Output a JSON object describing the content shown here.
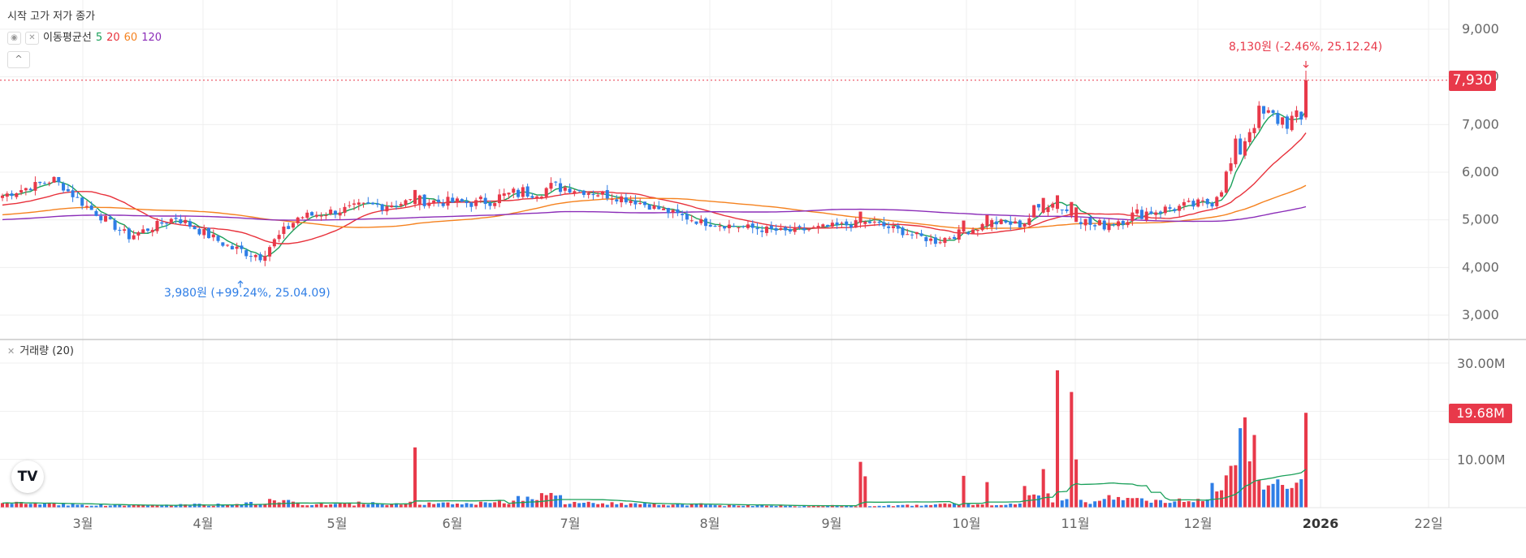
{
  "header": {
    "ohlc_label": "시작 고가 저가 종가"
  },
  "ma_legend": {
    "label": "이동평균선",
    "periods": [
      "5",
      "20",
      "60",
      "120"
    ],
    "colors": [
      "#1aa05a",
      "#e8313b",
      "#f5821f",
      "#8b2db8"
    ]
  },
  "volume_legend": {
    "label": "거래량 (20)"
  },
  "colors": {
    "up": "#e8394a",
    "down": "#2f7ee6",
    "grid": "#efefef",
    "last_price_bg": "#e8394a"
  },
  "annotations": {
    "high": "8,130원 (-2.46%, 25.12.24)",
    "low": "3,980원 (+99.24%, 25.04.09)"
  },
  "last_price": "7,930",
  "last_volume": "19.68M",
  "chart_data": {
    "type": "candlestick",
    "x_axis_labels": [
      "3월",
      "4월",
      "5월",
      "6월",
      "7월",
      "8월",
      "9월",
      "10월",
      "11월",
      "12월",
      "2026",
      "22일"
    ],
    "price_axis": {
      "ticks": [
        "9,000",
        "8,000",
        "7,000",
        "6,000",
        "5,000",
        "4,000",
        "3,000"
      ],
      "ylim": [
        2600,
        9300
      ]
    },
    "volume_axis": {
      "ticks": [
        "30.00M",
        "10.00M"
      ],
      "ylim": [
        0,
        36000000
      ]
    },
    "segments": [
      {
        "bars": 12,
        "start": 5480,
        "end": 5850,
        "vol": 0.9,
        "noise": 90
      },
      {
        "bars": 6,
        "start": 5850,
        "end": 5350,
        "vol": 0.7,
        "noise": 80
      },
      {
        "bars": 10,
        "start": 5350,
        "end": 4650,
        "vol": 0.5,
        "noise": 90
      },
      {
        "bars": 10,
        "start": 4650,
        "end": 5050,
        "vol": 0.5,
        "noise": 90
      },
      {
        "bars": 12,
        "start": 5050,
        "end": 4400,
        "vol": 0.6,
        "noise": 100
      },
      {
        "bars": 6,
        "start": 4400,
        "end": 4250,
        "vol": 0.9,
        "noise": 120
      },
      {
        "bars": 8,
        "start": 4250,
        "end": 5050,
        "vol": 1.3,
        "noise": 120
      },
      {
        "bars": 12,
        "start": 5050,
        "end": 5250,
        "vol": 0.7,
        "noise": 100
      },
      {
        "bars": 14,
        "start": 5250,
        "end": 5400,
        "vol": 0.9,
        "noise": 120
      },
      {
        "bars": 12,
        "start": 5400,
        "end": 5350,
        "vol": 0.8,
        "noise": 110
      },
      {
        "bars": 8,
        "start": 5350,
        "end": 5550,
        "vol": 1.2,
        "noise": 140
      },
      {
        "bars": 10,
        "start": 5550,
        "end": 5700,
        "vol": 2.2,
        "noise": 160
      },
      {
        "bars": 14,
        "start": 5700,
        "end": 5450,
        "vol": 0.9,
        "noise": 100
      },
      {
        "bars": 16,
        "start": 5450,
        "end": 4950,
        "vol": 0.7,
        "noise": 80
      },
      {
        "bars": 18,
        "start": 4950,
        "end": 4750,
        "vol": 0.5,
        "noise": 80
      },
      {
        "bars": 18,
        "start": 4750,
        "end": 4950,
        "vol": 0.4,
        "noise": 80
      },
      {
        "bars": 14,
        "start": 4950,
        "end": 4550,
        "vol": 0.5,
        "noise": 80
      },
      {
        "bars": 12,
        "start": 4550,
        "end": 4950,
        "vol": 0.7,
        "noise": 90
      },
      {
        "bars": 6,
        "start": 4950,
        "end": 4900,
        "vol": 0.7,
        "noise": 90
      },
      {
        "bars": 6,
        "start": 4900,
        "end": 5400,
        "vol": 3.5,
        "noise": 200
      },
      {
        "bars": 10,
        "start": 5400,
        "end": 4850,
        "vol": 1.3,
        "noise": 120
      },
      {
        "bars": 10,
        "start": 4850,
        "end": 5150,
        "vol": 2.2,
        "noise": 140
      },
      {
        "bars": 14,
        "start": 5150,
        "end": 5350,
        "vol": 1.4,
        "noise": 120
      },
      {
        "bars": 4,
        "start": 5350,
        "end": 5900,
        "vol": 5.0,
        "noise": 250
      },
      {
        "bars": 6,
        "start": 5900,
        "end": 7200,
        "vol": 14.0,
        "noise": 400
      },
      {
        "bars": 10,
        "start": 7200,
        "end": 7050,
        "vol": 6.0,
        "noise": 250
      }
    ],
    "special_bars": [
      {
        "index": 88,
        "volume": 12.5
      },
      {
        "index": 183,
        "volume": 9.5
      },
      {
        "index": 184,
        "volume": 6.5
      },
      {
        "index": 205,
        "volume": 6.6
      },
      {
        "index": 210,
        "volume": 5.3
      },
      {
        "index": 222,
        "volume": 8.0
      },
      {
        "index": 225,
        "volume": 28.5
      },
      {
        "index": 228,
        "volume": 24.0
      },
      {
        "index": 229,
        "volume": 10.0
      }
    ],
    "last_bar": {
      "open": 7150,
      "high": 8130,
      "low": 7100,
      "close": 7930,
      "volume": 19.68
    },
    "ma_end_values": {
      "ma5": 7180,
      "ma20": 6450,
      "ma60": 5420,
      "ma120": 5230
    }
  }
}
